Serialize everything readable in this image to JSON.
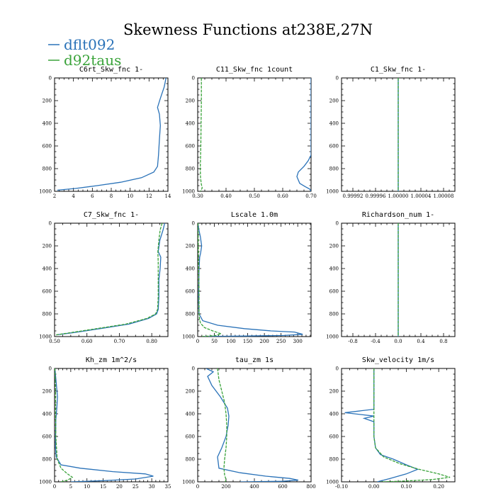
{
  "figure_title": "Skewness Functions at238E,27N",
  "legend": [
    {
      "label": "dflt092",
      "color": "#2a72b8"
    },
    {
      "label": "d92taus",
      "color": "#3aa33a"
    }
  ],
  "chart_data": [
    {
      "type": "line",
      "title": "C6rt_Skw_fnc   1-",
      "xlim": [
        2,
        14
      ],
      "ylim": [
        0,
        1000
      ],
      "xticks": [
        "2",
        "4",
        "6",
        "8",
        "10",
        "12",
        "14"
      ],
      "xtick_values": [
        2,
        4,
        6,
        8,
        10,
        12,
        14
      ],
      "yticks": [
        "0",
        "200",
        "400",
        "600",
        "800",
        "1000"
      ],
      "yreversed": true,
      "series": [
        {
          "name": "dflt092",
          "color": "#2a72b8",
          "dashed": false,
          "x": [
            13.8,
            13.6,
            13.2,
            12.9,
            13.1,
            13.2,
            13.1,
            13.0,
            12.9,
            12.5,
            11.2,
            9.0,
            6.5,
            4.2,
            2.3
          ],
          "y": [
            0,
            80,
            180,
            260,
            320,
            420,
            540,
            680,
            780,
            830,
            880,
            920,
            950,
            975,
            990
          ]
        },
        {
          "name": "d92taus",
          "color": "#3aa33a",
          "dashed": false,
          "x": [],
          "y": []
        }
      ]
    },
    {
      "type": "line",
      "title": "C11_Skw_fnc   1count",
      "xlim": [
        0.3,
        0.7
      ],
      "ylim": [
        0,
        1000
      ],
      "xticks": [
        "0.30",
        "0.40",
        "0.50",
        "0.60",
        "0.70"
      ],
      "xtick_values": [
        0.3,
        0.4,
        0.5,
        0.6,
        0.7
      ],
      "yticks": [
        "0",
        "200",
        "400",
        "600",
        "800",
        "1000"
      ],
      "yreversed": true,
      "series": [
        {
          "name": "dflt092",
          "color": "#2a72b8",
          "dashed": false,
          "x": [
            0.7,
            0.7,
            0.7,
            0.7,
            0.7,
            0.69,
            0.675,
            0.655,
            0.65,
            0.66,
            0.68,
            0.695,
            0.7
          ],
          "y": [
            0,
            200,
            400,
            600,
            680,
            730,
            780,
            830,
            870,
            930,
            960,
            980,
            1000
          ]
        },
        {
          "name": "d92taus",
          "color": "#3aa33a",
          "dashed": true,
          "x": [
            0.313,
            0.313,
            0.312,
            0.311,
            0.31,
            0.309,
            0.31,
            0.313,
            0.316,
            0.31
          ],
          "y": [
            0,
            200,
            400,
            600,
            700,
            800,
            880,
            940,
            970,
            1000
          ]
        }
      ]
    },
    {
      "type": "line",
      "title": "C1_Skw_fnc   1-",
      "xlim": [
        0.9999,
        1.0001
      ],
      "ylim": [
        0,
        1000
      ],
      "xticks": [
        "0.99992",
        "0.99996",
        "1.00000",
        "1.00004",
        "1.00008"
      ],
      "xtick_values": [
        0.99992,
        0.99996,
        1.0,
        1.00004,
        1.00008
      ],
      "yticks": [
        "0",
        "200",
        "400",
        "600",
        "800",
        "1000"
      ],
      "yreversed": true,
      "series": [
        {
          "name": "dflt092",
          "color": "#2a72b8",
          "dashed": false,
          "x": [
            1.0,
            1.0
          ],
          "y": [
            0,
            1000
          ]
        },
        {
          "name": "d92taus",
          "color": "#3aa33a",
          "dashed": true,
          "x": [
            1.0,
            1.0
          ],
          "y": [
            0,
            1000
          ]
        }
      ]
    },
    {
      "type": "line",
      "title": "C7_Skw_fnc   1-",
      "xlim": [
        0.5,
        0.85
      ],
      "ylim": [
        0,
        1000
      ],
      "xticks": [
        "0.50",
        "0.60",
        "0.70",
        "0.80"
      ],
      "xtick_values": [
        0.5,
        0.6,
        0.7,
        0.8
      ],
      "yticks": [
        "0",
        "200",
        "400",
        "600",
        "800",
        "1000"
      ],
      "yreversed": true,
      "series": [
        {
          "name": "dflt092",
          "color": "#2a72b8",
          "dashed": false,
          "x": [
            0.84,
            0.835,
            0.825,
            0.82,
            0.828,
            0.826,
            0.822,
            0.822,
            0.82,
            0.815,
            0.79,
            0.73,
            0.64,
            0.56,
            0.505
          ],
          "y": [
            0,
            60,
            150,
            250,
            300,
            400,
            500,
            650,
            760,
            800,
            840,
            890,
            930,
            965,
            985
          ]
        },
        {
          "name": "d92taus",
          "color": "#3aa33a",
          "dashed": true,
          "x": [
            0.832,
            0.826,
            0.822,
            0.819,
            0.82,
            0.82,
            0.82,
            0.818,
            0.812,
            0.785,
            0.72,
            0.63,
            0.55,
            0.505
          ],
          "y": [
            0,
            60,
            150,
            250,
            350,
            500,
            650,
            760,
            800,
            840,
            890,
            930,
            965,
            985
          ]
        }
      ]
    },
    {
      "type": "line",
      "title": "Lscale   1.0m",
      "xlim": [
        0,
        340
      ],
      "ylim": [
        0,
        1000
      ],
      "xticks": [
        "0",
        "50",
        "100",
        "150",
        "200",
        "250",
        "300"
      ],
      "xtick_values": [
        0,
        50,
        100,
        150,
        200,
        250,
        300
      ],
      "yticks": [
        "0",
        "200",
        "400",
        "600",
        "800",
        "1000"
      ],
      "yreversed": true,
      "series": [
        {
          "name": "dflt092",
          "color": "#2a72b8",
          "dashed": false,
          "x": [
            1,
            3,
            8,
            12,
            9,
            6,
            4,
            3,
            3,
            4,
            15,
            60,
            140,
            220,
            290,
            315,
            260,
            150,
            60,
            20
          ],
          "y": [
            0,
            50,
            120,
            200,
            260,
            300,
            400,
            600,
            700,
            800,
            860,
            900,
            930,
            950,
            960,
            980,
            990,
            995,
            998,
            1000
          ]
        },
        {
          "name": "d92taus",
          "color": "#3aa33a",
          "dashed": true,
          "x": [
            1,
            2,
            3,
            4,
            4,
            4,
            5,
            8,
            20,
            45,
            70,
            55,
            30,
            10
          ],
          "y": [
            0,
            200,
            400,
            600,
            700,
            780,
            840,
            880,
            920,
            950,
            975,
            990,
            996,
            1000
          ]
        }
      ]
    },
    {
      "type": "line",
      "title": "Richardson_num   1-",
      "xlim": [
        -1.0,
        1.0
      ],
      "ylim": [
        0,
        1000
      ],
      "xticks": [
        "-0.8",
        "-0.4",
        "0.0",
        "0.4",
        "0.8"
      ],
      "xtick_values": [
        -0.8,
        -0.4,
        0.0,
        0.4,
        0.8
      ],
      "yticks": [
        "0",
        "200",
        "400",
        "600",
        "800",
        "1000"
      ],
      "yreversed": true,
      "series": [
        {
          "name": "dflt092",
          "color": "#2a72b8",
          "dashed": false,
          "x": [
            0,
            0
          ],
          "y": [
            0,
            1000
          ]
        },
        {
          "name": "d92taus",
          "color": "#3aa33a",
          "dashed": true,
          "x": [
            0,
            0
          ],
          "y": [
            0,
            1000
          ]
        }
      ]
    },
    {
      "type": "line",
      "title": "Kh_zm   1m^2/s",
      "xlim": [
        0,
        35
      ],
      "ylim": [
        0,
        1000
      ],
      "xticks": [
        "0",
        "5",
        "10",
        "15",
        "20",
        "25",
        "30",
        "35"
      ],
      "xtick_values": [
        0,
        5,
        10,
        15,
        20,
        25,
        30,
        35
      ],
      "yticks": [
        "0",
        "200",
        "400",
        "600",
        "800",
        "1000"
      ],
      "yreversed": true,
      "series": [
        {
          "name": "dflt092",
          "color": "#2a72b8",
          "dashed": false,
          "x": [
            0.1,
            0.6,
            0.9,
            0.7,
            0.4,
            0.3,
            0.3,
            0.5,
            2,
            8,
            18,
            28,
            30.5,
            25,
            15,
            5
          ],
          "y": [
            0,
            150,
            250,
            350,
            450,
            600,
            700,
            780,
            850,
            880,
            910,
            930,
            950,
            975,
            990,
            1000
          ]
        },
        {
          "name": "d92taus",
          "color": "#3aa33a",
          "dashed": true,
          "x": [
            0.1,
            0.3,
            0.3,
            0.4,
            0.8,
            2,
            4,
            5.5,
            4,
            2
          ],
          "y": [
            0,
            200,
            400,
            600,
            800,
            880,
            930,
            960,
            985,
            1000
          ]
        }
      ]
    },
    {
      "type": "line",
      "title": "tau_zm   1s",
      "xlim": [
        0,
        800
      ],
      "ylim": [
        0,
        1000
      ],
      "xticks": [
        "0",
        "200",
        "400",
        "600",
        "800"
      ],
      "xtick_values": [
        0,
        200,
        400,
        600,
        800
      ],
      "yticks": [
        "0",
        "200",
        "400",
        "600",
        "800",
        "1000"
      ],
      "yreversed": true,
      "series": [
        {
          "name": "dflt092",
          "color": "#2a72b8",
          "dashed": false,
          "x": [
            60,
            110,
            70,
            100,
            160,
            210,
            220,
            215,
            200,
            170,
            140,
            150,
            300,
            480,
            650,
            710,
            600,
            300
          ],
          "y": [
            0,
            30,
            70,
            150,
            250,
            350,
            420,
            500,
            600,
            700,
            780,
            880,
            920,
            950,
            970,
            985,
            995,
            1000
          ]
        },
        {
          "name": "d92taus",
          "color": "#3aa33a",
          "dashed": true,
          "x": [
            140,
            150,
            170,
            190,
            200,
            205,
            205,
            200,
            190,
            185,
            190,
            200,
            195
          ],
          "y": [
            0,
            100,
            200,
            300,
            400,
            500,
            600,
            700,
            800,
            880,
            940,
            980,
            1000
          ]
        }
      ]
    },
    {
      "type": "line",
      "title": "Skw_velocity   1m/s",
      "xlim": [
        -0.1,
        0.25
      ],
      "ylim": [
        0,
        1000
      ],
      "xticks": [
        "-0.10",
        "0.00",
        "0.10",
        "0.20"
      ],
      "xtick_values": [
        -0.1,
        0.0,
        0.1,
        0.2
      ],
      "yticks": [
        "0",
        "200",
        "400",
        "600",
        "800",
        "1000"
      ],
      "yreversed": true,
      "series": [
        {
          "name": "dflt092",
          "color": "#2a72b8",
          "dashed": false,
          "x": [
            0,
            0,
            0,
            -0.09,
            0.0,
            -0.03,
            0.0,
            0.0,
            0.005,
            0.02,
            0.06,
            0.1,
            0.135,
            0.1,
            0.05,
            0.01
          ],
          "y": [
            0,
            200,
            360,
            390,
            420,
            440,
            470,
            600,
            700,
            760,
            800,
            850,
            890,
            930,
            970,
            1000
          ]
        },
        {
          "name": "d92taus",
          "color": "#3aa33a",
          "dashed": true,
          "x": [
            0,
            0,
            0,
            0.0,
            0.005,
            0.03,
            0.08,
            0.14,
            0.2,
            0.235,
            0.18,
            0.08,
            0.02
          ],
          "y": [
            0,
            200,
            400,
            600,
            700,
            780,
            840,
            890,
            930,
            960,
            980,
            995,
            1000
          ]
        }
      ]
    }
  ]
}
